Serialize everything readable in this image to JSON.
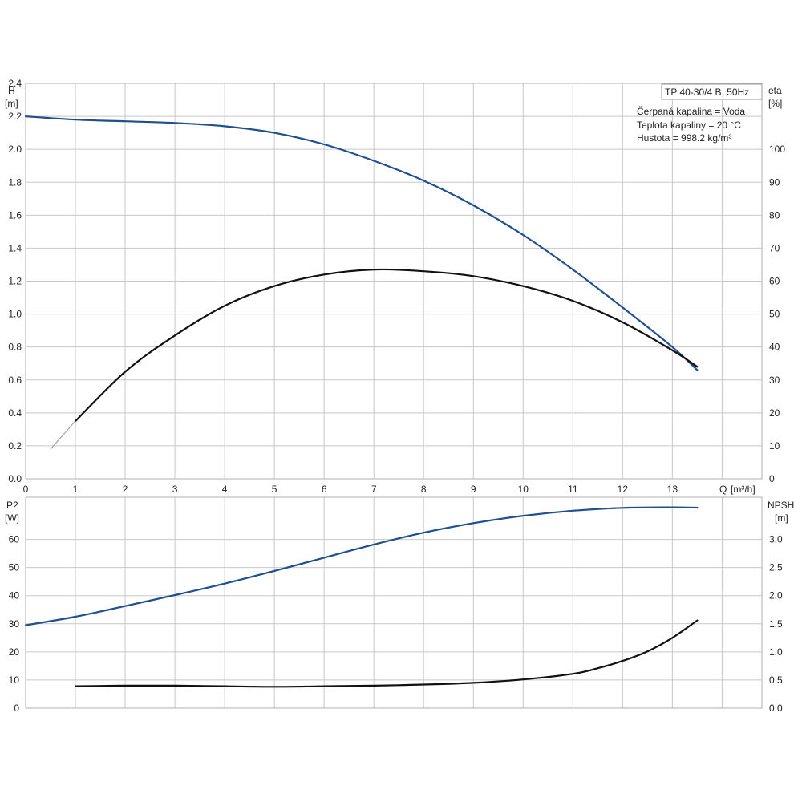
{
  "chart_data": [
    {
      "type": "line",
      "panel": "upper",
      "title": "TP 40-30/4 B, 50Hz",
      "annotations": [
        "Čerpaná kapalina = Voda",
        "Teplota kapaliny = 20 °C",
        "Hustota = 998.2 kg/m³"
      ],
      "xlabel": "Q [m³/h]",
      "xlabel_name": "Q",
      "xlabel_unit": "[m³/h]",
      "xlim": [
        0,
        14.8
      ],
      "x_ticks": [
        "0",
        "1",
        "2",
        "3",
        "4",
        "5",
        "6",
        "7",
        "8",
        "9",
        "10",
        "11",
        "12",
        "13"
      ],
      "ylabel_left": "H",
      "ylabel_left_unit": "[m]",
      "ylim_left": [
        0,
        2.4
      ],
      "y_ticks_left": [
        "0.0",
        "0.2",
        "0.4",
        "0.6",
        "0.8",
        "1.0",
        "1.2",
        "1.4",
        "1.6",
        "1.8",
        "2.0",
        "2.2",
        "2.4"
      ],
      "ylabel_right": "eta",
      "ylabel_right_unit": "[%]",
      "ylim_right": [
        0,
        120
      ],
      "y_ticks_right": [
        "0",
        "10",
        "20",
        "30",
        "40",
        "50",
        "60",
        "70",
        "80",
        "90",
        "100"
      ],
      "grid": true,
      "series": [
        {
          "axis": "left",
          "color": "#1f4f8f",
          "x": [
            0,
            1,
            2,
            3,
            4,
            5,
            6,
            7,
            8,
            9,
            10,
            11,
            12,
            13,
            13.5
          ],
          "y": [
            2.2,
            2.18,
            2.17,
            2.16,
            2.14,
            2.1,
            2.03,
            1.93,
            1.81,
            1.66,
            1.48,
            1.27,
            1.04,
            0.8,
            0.66
          ]
        },
        {
          "axis": "right",
          "color": "#111111",
          "x": [
            1,
            2,
            3,
            4,
            5,
            6,
            7,
            8,
            9,
            10,
            11,
            12,
            13,
            13.5
          ],
          "y": [
            17.5,
            32.5,
            43.5,
            52.5,
            58.5,
            62,
            63.5,
            63,
            61.5,
            58.5,
            54,
            47.5,
            39,
            34
          ]
        },
        {
          "axis": "right",
          "color": "#9a9a9a",
          "x": [
            0.5,
            1
          ],
          "y": [
            9,
            17.5
          ]
        }
      ]
    },
    {
      "type": "line",
      "panel": "lower",
      "xlim": [
        0,
        14.8
      ],
      "ylabel_left": "P2",
      "ylabel_left_unit": "[W]",
      "ylim_left": [
        0,
        75
      ],
      "y_ticks_left": [
        "0",
        "10",
        "20",
        "30",
        "40",
        "50",
        "60"
      ],
      "ylabel_right": "NPSH",
      "ylabel_right_unit": "[m]",
      "ylim_right": [
        0,
        3.75
      ],
      "y_ticks_right": [
        "0.0",
        "0.5",
        "1.0",
        "1.5",
        "2.0",
        "2.5",
        "3.0"
      ],
      "grid": true,
      "series": [
        {
          "axis": "left",
          "color": "#1f4f8f",
          "x": [
            0,
            1,
            2,
            3,
            4,
            5,
            6,
            7,
            8,
            9,
            10,
            11,
            12,
            13,
            13.5
          ],
          "y": [
            29.5,
            32.5,
            36.3,
            40.2,
            44.3,
            48.8,
            53.5,
            58.2,
            62.4,
            65.8,
            68.4,
            70.2,
            71.2,
            71.4,
            71.3
          ]
        },
        {
          "axis": "right",
          "color": "#111111",
          "x": [
            1,
            2,
            3,
            4,
            5,
            6,
            7,
            8,
            9,
            10,
            11,
            11.5,
            12,
            12.5,
            13,
            13.5
          ],
          "y": [
            0.39,
            0.4,
            0.4,
            0.39,
            0.38,
            0.39,
            0.4,
            0.42,
            0.45,
            0.51,
            0.61,
            0.71,
            0.84,
            1.01,
            1.25,
            1.56
          ]
        }
      ]
    }
  ]
}
